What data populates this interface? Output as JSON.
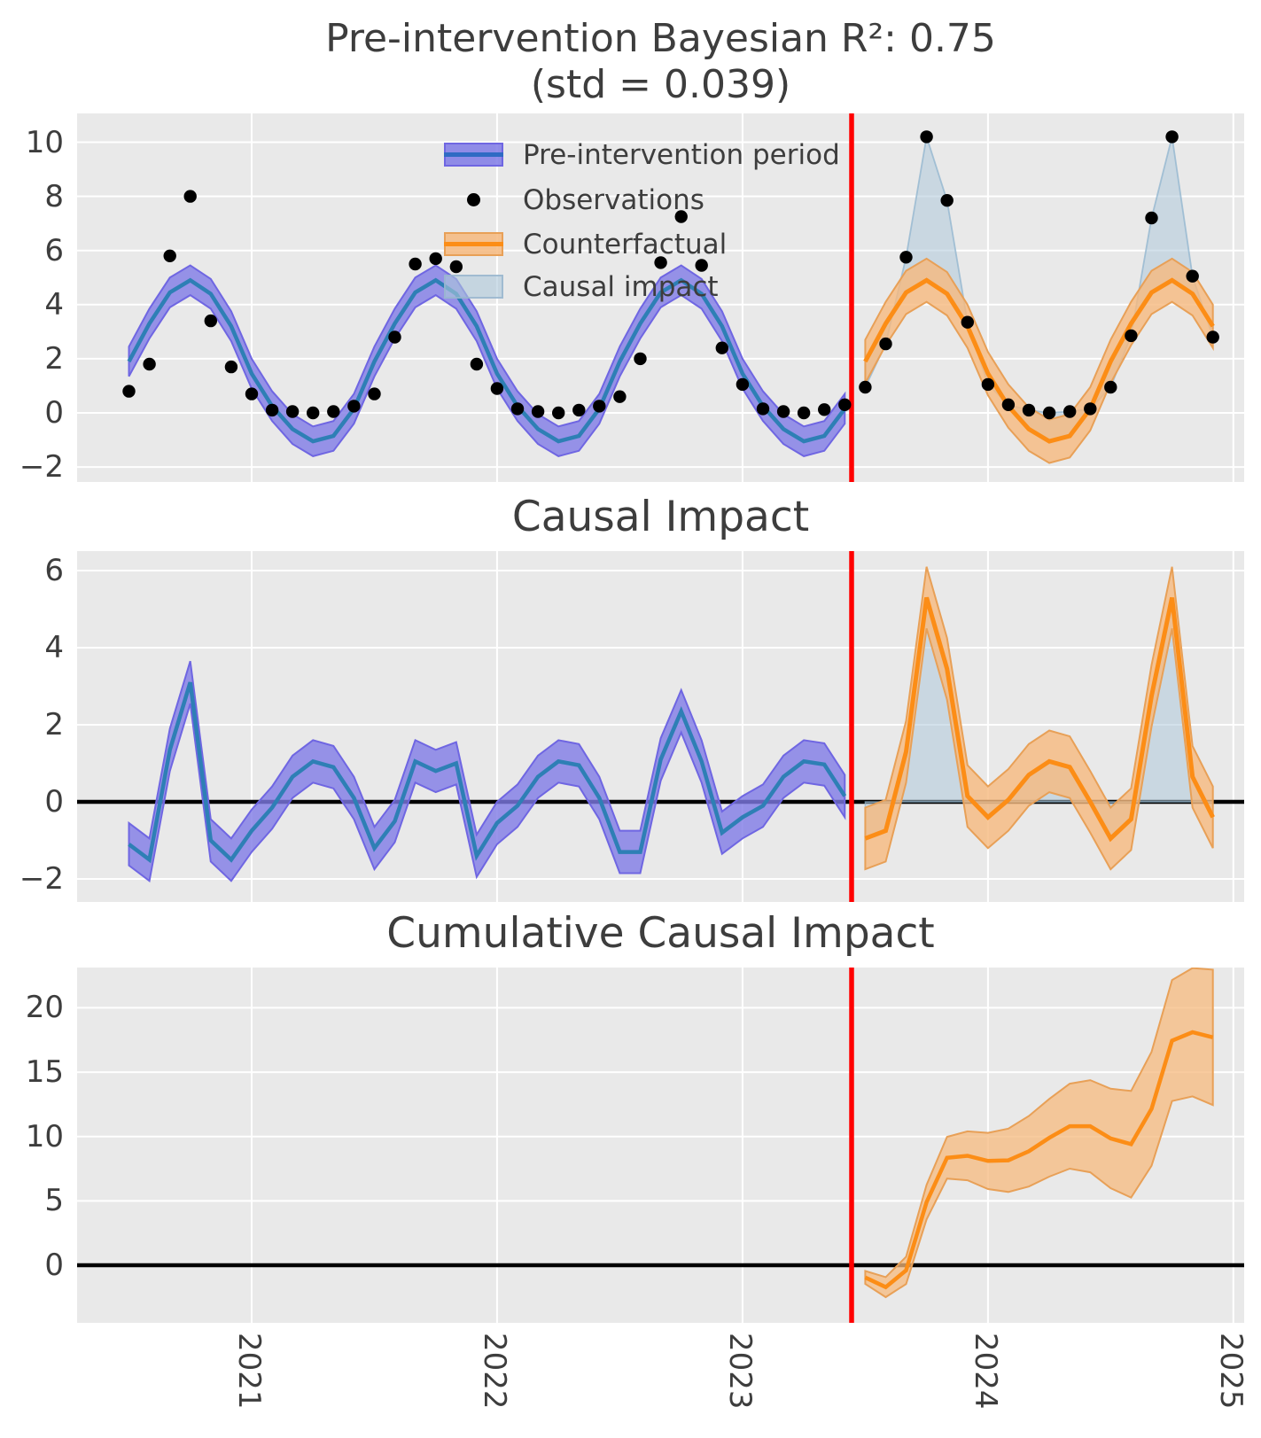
{
  "title": {
    "line1": "Pre-intervention Bayesian R²: 0.75",
    "line2": "(std = 0.039)"
  },
  "legend": {
    "items": [
      {
        "label": "Pre-intervention period",
        "swatch": "band-blue-with-line"
      },
      {
        "label": "Observations",
        "swatch": "black-dot"
      },
      {
        "label": "Counterfactual",
        "swatch": "band-orange-with-line"
      },
      {
        "label": "Causal impact",
        "swatch": "patch-lightblue"
      }
    ]
  },
  "panels": [
    {
      "name": "model-fit",
      "title": "",
      "yticks": [
        -2,
        0,
        2,
        4,
        6,
        8,
        10
      ],
      "ylim": [
        -2.6,
        11.1
      ]
    },
    {
      "name": "impact",
      "title": "Causal Impact",
      "yticks": [
        -2,
        0,
        2,
        4,
        6
      ],
      "ylim": [
        -2.6,
        6.5
      ]
    },
    {
      "name": "cumulative",
      "title": "Cumulative Causal Impact",
      "yticks": [
        0,
        5,
        10,
        15,
        20
      ],
      "ylim": [
        -4.5,
        23.1
      ]
    }
  ],
  "x_axis": {
    "tick_labels": [
      "2021",
      "2022",
      "2023",
      "2024",
      "2025"
    ],
    "grid": true
  },
  "colors": {
    "pre_band": "#7f7ae6",
    "pre_band_edge": "#6f66e2",
    "pre_line": "#2e7fb5",
    "post_band": "#f6b97e",
    "post_band_edge": "#e8a057",
    "post_line": "#fc8d16",
    "causal_fill": "#aec8da",
    "causal_fill_edge": "#93b7cf",
    "observations": "#000000",
    "treatment_line": "#ff0000",
    "zero_line": "#000000",
    "plot_bg": "#e9e9e9",
    "grid": "#ffffff",
    "text": "#3d3d3d"
  },
  "chart_data": {
    "type": "line",
    "frequency": "monthly",
    "x_start": "2020-07",
    "x_end": "2024-12",
    "treatment_time": "2023-07",
    "treatment_index": 36,
    "legend_position": "upper left inside first panel",
    "grid": true,
    "dates": [
      "2020-07",
      "2020-08",
      "2020-09",
      "2020-10",
      "2020-11",
      "2020-12",
      "2021-01",
      "2021-02",
      "2021-03",
      "2021-04",
      "2021-05",
      "2021-06",
      "2021-07",
      "2021-08",
      "2021-09",
      "2021-10",
      "2021-11",
      "2021-12",
      "2022-01",
      "2022-02",
      "2022-03",
      "2022-04",
      "2022-05",
      "2022-06",
      "2022-07",
      "2022-08",
      "2022-09",
      "2022-10",
      "2022-11",
      "2022-12",
      "2023-01",
      "2023-02",
      "2023-03",
      "2023-04",
      "2023-05",
      "2023-06",
      "2023-07",
      "2023-08",
      "2023-09",
      "2023-10",
      "2023-11",
      "2023-12",
      "2024-01",
      "2024-02",
      "2024-03",
      "2024-04",
      "2024-05",
      "2024-06",
      "2024-07",
      "2024-08",
      "2024-09",
      "2024-10",
      "2024-11",
      "2024-12"
    ],
    "series": {
      "observations": [
        0.8,
        1.8,
        5.8,
        8.0,
        3.4,
        1.7,
        0.7,
        0.1,
        0.05,
        0.0,
        0.05,
        0.25,
        0.7,
        2.8,
        5.5,
        5.7,
        5.4,
        1.8,
        0.9,
        0.15,
        0.05,
        0.0,
        0.1,
        0.25,
        0.6,
        2.0,
        5.55,
        7.25,
        5.45,
        2.4,
        1.05,
        0.15,
        0.05,
        0.0,
        0.12,
        0.3,
        0.95,
        2.55,
        5.75,
        10.2,
        7.85,
        3.35,
        1.05,
        0.3,
        0.1,
        0.0,
        0.05,
        0.15,
        0.95,
        2.85,
        7.2,
        10.2,
        5.05,
        2.8
      ],
      "counterfactual_mean": [
        1.9,
        3.3,
        4.45,
        4.9,
        4.4,
        3.2,
        1.45,
        0.25,
        -0.6,
        -1.05,
        -0.85,
        0.15,
        1.9,
        3.3,
        4.45,
        4.9,
        4.4,
        3.2,
        1.45,
        0.25,
        -0.6,
        -1.05,
        -0.85,
        0.15,
        1.9,
        3.3,
        4.45,
        4.9,
        4.4,
        3.2,
        1.45,
        0.25,
        -0.6,
        -1.05,
        -0.85,
        0.15,
        1.9,
        3.3,
        4.45,
        4.9,
        4.4,
        3.2,
        1.45,
        0.25,
        -0.6,
        -1.05,
        -0.85,
        0.15,
        1.9,
        3.3,
        4.45,
        4.9,
        4.4,
        3.2
      ],
      "ci_halfwidth_pre": 0.55,
      "ci_halfwidth_post": 0.8,
      "impact_mean": [
        -0.95,
        -0.75,
        1.3,
        5.3,
        3.45,
        0.15,
        -0.4,
        0.05,
        0.7,
        1.05,
        0.9,
        0.0,
        -0.95,
        -0.45,
        2.75,
        5.3,
        0.65,
        -0.4
      ],
      "cumulative_impact_mean": [
        -0.95,
        -1.7,
        -0.4,
        4.9,
        8.35,
        8.5,
        8.1,
        8.15,
        8.85,
        9.9,
        10.8,
        10.8,
        9.85,
        9.4,
        12.15,
        17.45,
        18.1,
        17.7
      ],
      "cumulative_ci_halfwidth": [
        0.5,
        0.78,
        1.06,
        1.34,
        1.62,
        1.9,
        2.18,
        2.46,
        2.74,
        3.02,
        3.3,
        3.58,
        3.86,
        4.14,
        4.42,
        4.7,
        4.98,
        5.26
      ]
    }
  }
}
